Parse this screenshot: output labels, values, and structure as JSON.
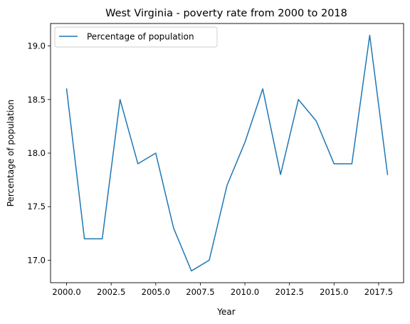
{
  "chart_data": {
    "type": "line",
    "title": "West Virginia - poverty rate from 2000 to 2018",
    "xlabel": "Year",
    "ylabel": "Percentage of population",
    "xlim": [
      1999.1,
      2018.9
    ],
    "ylim": [
      16.79,
      19.21
    ],
    "grid": false,
    "legend_position": "top-left",
    "x": [
      2000,
      2001,
      2002,
      2003,
      2004,
      2005,
      2006,
      2007,
      2008,
      2009,
      2010,
      2011,
      2012,
      2013,
      2014,
      2015,
      2016,
      2017,
      2018
    ],
    "series": [
      {
        "name": "Percentage of population",
        "color": "#1f77b4",
        "values": [
          18.6,
          17.2,
          17.2,
          18.5,
          17.9,
          18.0,
          17.3,
          16.9,
          17.0,
          17.7,
          18.1,
          18.6,
          17.8,
          18.5,
          18.3,
          17.9,
          17.9,
          19.1,
          17.8
        ]
      }
    ],
    "x_ticks": [
      2000.0,
      2002.5,
      2005.0,
      2007.5,
      2010.0,
      2012.5,
      2015.0,
      2017.5
    ],
    "x_tick_labels": [
      "2000.0",
      "2002.5",
      "2005.0",
      "2007.5",
      "2010.0",
      "2012.5",
      "2015.0",
      "2017.5"
    ],
    "y_ticks": [
      17.0,
      17.5,
      18.0,
      18.5,
      19.0
    ],
    "y_tick_labels": [
      "17.0",
      "17.5",
      "18.0",
      "18.5",
      "19.0"
    ]
  }
}
